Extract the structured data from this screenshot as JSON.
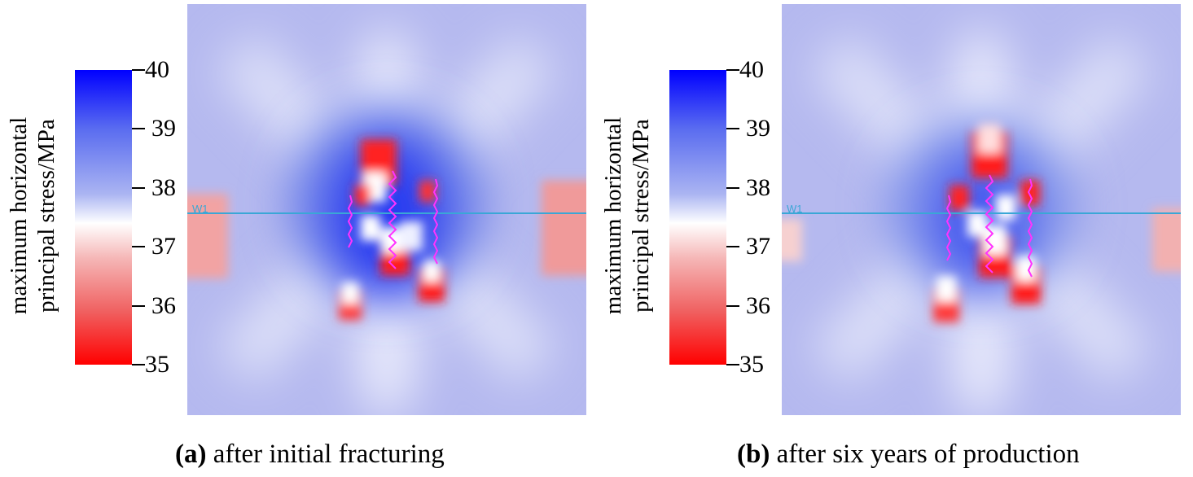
{
  "chart_data": [
    {
      "type": "heatmap",
      "panel_label": "(a)",
      "caption": "after initial fracturing",
      "colorbar": {
        "title_line1": "maximum horizontal",
        "title_line2": "principal stress/MPa",
        "min": 35,
        "max": 40,
        "ticks": [
          "40",
          "39",
          "38",
          "37",
          "36",
          "35"
        ],
        "color_low": "#ff0000",
        "color_mid": "#ffffff",
        "color_high": "#0000ff"
      },
      "well_label": "W1",
      "well_color": "#3aa7d6",
      "fracture_color": "#ff33ff"
    },
    {
      "type": "heatmap",
      "panel_label": "(b)",
      "caption": "after six years of production",
      "colorbar": {
        "title_line1": "maximum horizontal",
        "title_line2": "principal stress/MPa",
        "min": 35,
        "max": 40,
        "ticks": [
          "40",
          "39",
          "38",
          "37",
          "36",
          "35"
        ],
        "color_low": "#ff0000",
        "color_mid": "#ffffff",
        "color_high": "#0000ff"
      },
      "well_label": "W1",
      "well_color": "#3aa7d6",
      "fracture_color": "#ff33ff"
    }
  ]
}
